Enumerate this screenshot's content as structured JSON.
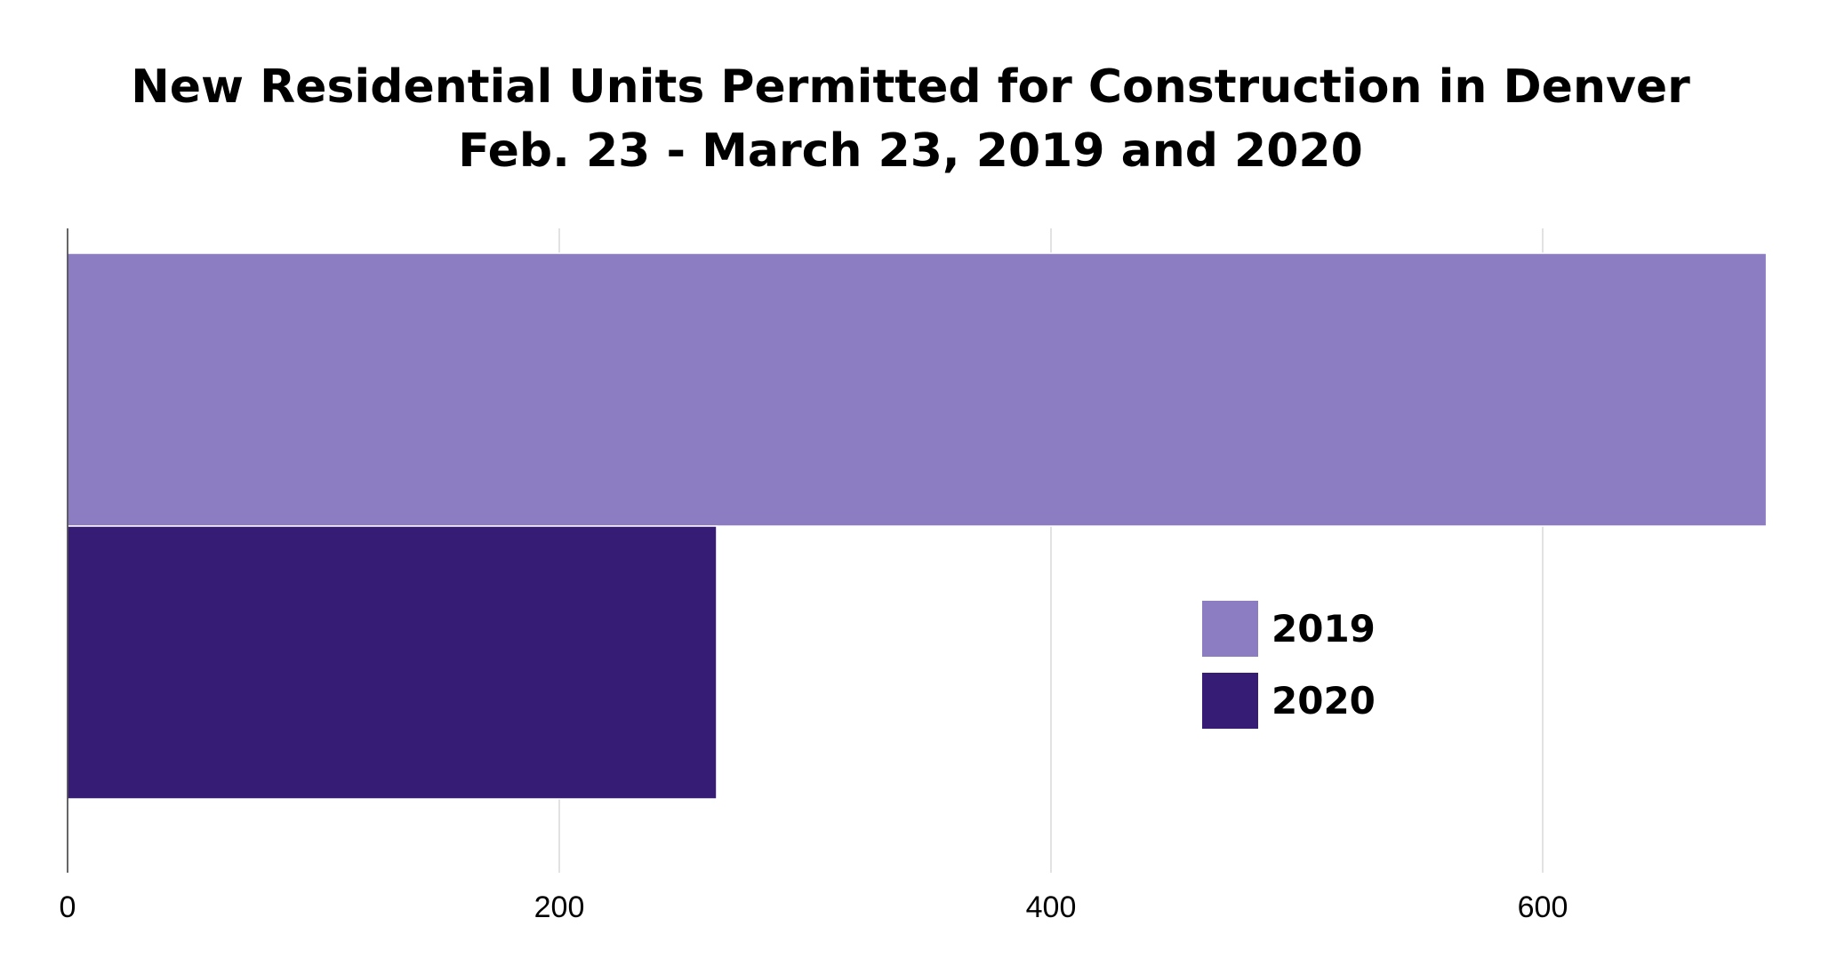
{
  "chart_data": {
    "type": "bar",
    "orientation": "horizontal",
    "title": "New Residential Units Permitted for Construction in Denver",
    "subtitle": "Feb. 23 - March 23, 2019 and 2020",
    "xlabel": "",
    "ylabel": "",
    "xlim": [
      0,
      700
    ],
    "ticks": [
      "0",
      "200",
      "400",
      "600"
    ],
    "tick_values": [
      0,
      200,
      400,
      600
    ],
    "grid": true,
    "legend_position": "right",
    "series": [
      {
        "name": "2019",
        "value": 691,
        "color": "#8c7dc2"
      },
      {
        "name": "2020",
        "value": 264,
        "color": "#361c74"
      }
    ]
  }
}
